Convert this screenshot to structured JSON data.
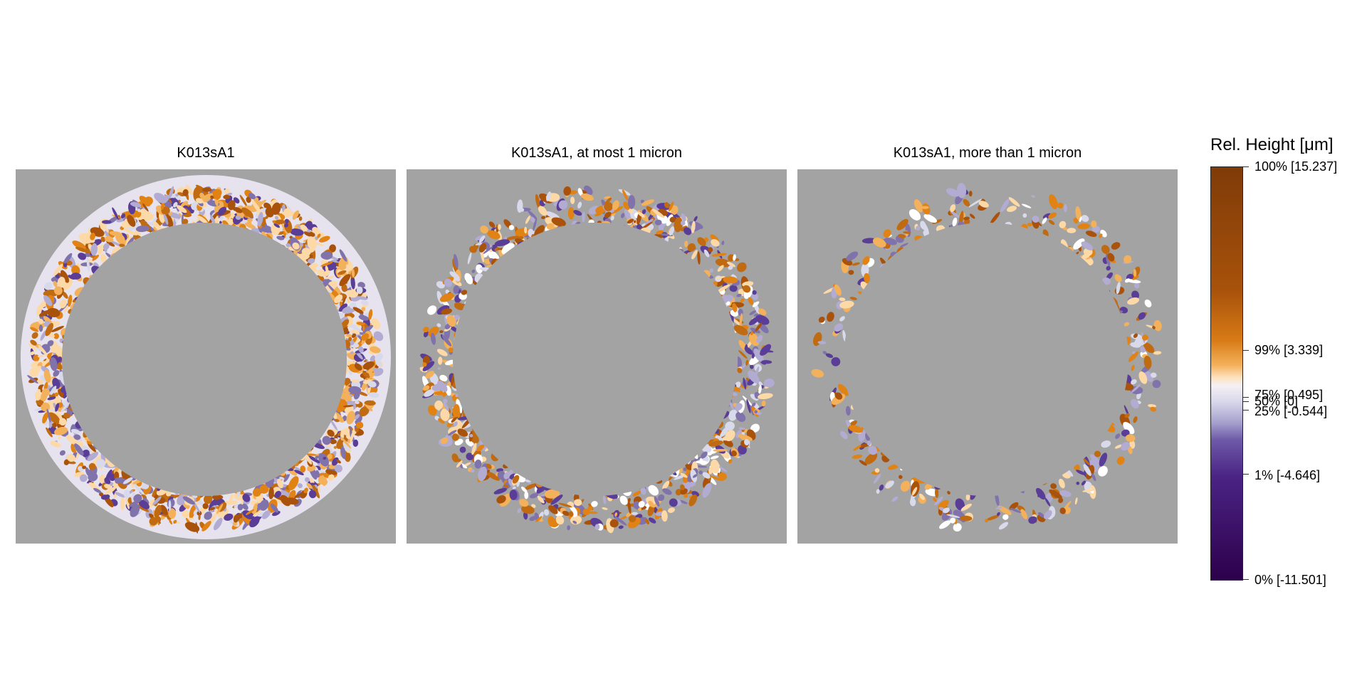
{
  "panels": [
    {
      "title": "K013sA1"
    },
    {
      "title": "K013sA1, at most 1 micron"
    },
    {
      "title": "K013sA1, more than 1 micron"
    }
  ],
  "legend": {
    "title": "Rel. Height [μm]",
    "ticks": [
      {
        "label": "100% [15.237]",
        "value": 15.237
      },
      {
        "label": "99% [3.339]",
        "value": 3.339
      },
      {
        "label": "75% [0.495]",
        "value": 0.495
      },
      {
        "label": "50% [0]",
        "value": 0
      },
      {
        "label": "25% [-0.544]",
        "value": -0.544
      },
      {
        "label": "1% [-4.646]",
        "value": -4.646
      },
      {
        "label": "0% [-11.501]",
        "value": -11.501
      }
    ]
  },
  "colors": {
    "background_panel": "#a3a3a3",
    "high": "#7f3b08",
    "mid_high": "#e08214",
    "center": "#f7f7f7",
    "mid_low": "#8073ac",
    "low": "#2d004b"
  }
}
